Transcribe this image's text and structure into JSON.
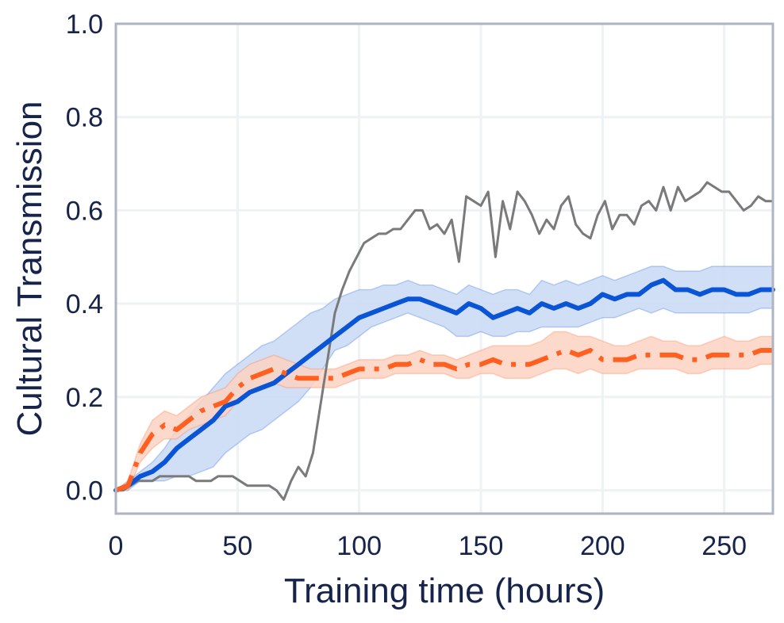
{
  "chart_data": {
    "type": "line",
    "title": "",
    "xlabel": "Training time (hours)",
    "ylabel": "Cultural Transmission",
    "xlim": [
      0,
      270
    ],
    "ylim": [
      -0.05,
      1.0
    ],
    "x_ticks": [
      0,
      50,
      100,
      150,
      200,
      250
    ],
    "y_ticks": [
      0.0,
      0.2,
      0.4,
      0.6,
      0.8,
      1.0
    ],
    "grid": true,
    "legend": "none",
    "series": [
      {
        "style": "solid",
        "color": "#0a55d6",
        "band_color": "#c9d9f5",
        "x": [
          0,
          5,
          10,
          15,
          20,
          25,
          30,
          35,
          40,
          45,
          50,
          55,
          60,
          65,
          70,
          75,
          80,
          85,
          90,
          95,
          100,
          105,
          110,
          115,
          120,
          125,
          130,
          135,
          140,
          145,
          150,
          155,
          160,
          165,
          170,
          175,
          180,
          185,
          190,
          195,
          200,
          205,
          210,
          215,
          220,
          225,
          230,
          235,
          240,
          245,
          250,
          255,
          260,
          265,
          270
        ],
        "y": [
          0.0,
          0.01,
          0.03,
          0.04,
          0.06,
          0.09,
          0.11,
          0.13,
          0.15,
          0.18,
          0.19,
          0.21,
          0.22,
          0.23,
          0.25,
          0.27,
          0.29,
          0.31,
          0.33,
          0.35,
          0.37,
          0.38,
          0.39,
          0.4,
          0.41,
          0.41,
          0.4,
          0.39,
          0.38,
          0.4,
          0.39,
          0.37,
          0.38,
          0.39,
          0.38,
          0.4,
          0.39,
          0.4,
          0.39,
          0.4,
          0.42,
          0.41,
          0.42,
          0.42,
          0.44,
          0.45,
          0.43,
          0.43,
          0.42,
          0.43,
          0.43,
          0.42,
          0.42,
          0.43,
          0.43
        ],
        "lower": [
          0.0,
          0.0,
          0.02,
          0.02,
          0.02,
          0.03,
          0.03,
          0.04,
          0.05,
          0.08,
          0.1,
          0.12,
          0.13,
          0.15,
          0.17,
          0.19,
          0.22,
          0.26,
          0.3,
          0.31,
          0.33,
          0.35,
          0.36,
          0.37,
          0.38,
          0.37,
          0.36,
          0.35,
          0.33,
          0.33,
          0.34,
          0.33,
          0.33,
          0.34,
          0.34,
          0.35,
          0.35,
          0.35,
          0.35,
          0.36,
          0.37,
          0.37,
          0.38,
          0.39,
          0.38,
          0.39,
          0.38,
          0.38,
          0.38,
          0.38,
          0.38,
          0.38,
          0.38,
          0.39,
          0.39
        ],
        "upper": [
          0.0,
          0.02,
          0.04,
          0.06,
          0.09,
          0.13,
          0.16,
          0.19,
          0.22,
          0.25,
          0.27,
          0.29,
          0.31,
          0.32,
          0.34,
          0.36,
          0.38,
          0.39,
          0.41,
          0.42,
          0.43,
          0.43,
          0.44,
          0.44,
          0.45,
          0.44,
          0.44,
          0.43,
          0.42,
          0.44,
          0.43,
          0.42,
          0.43,
          0.43,
          0.42,
          0.45,
          0.44,
          0.45,
          0.44,
          0.45,
          0.46,
          0.45,
          0.46,
          0.47,
          0.48,
          0.48,
          0.47,
          0.47,
          0.47,
          0.48,
          0.48,
          0.48,
          0.48,
          0.48,
          0.48
        ]
      },
      {
        "style": "dashdot",
        "color": "#ff5f1f",
        "band_color": "#fbd2c2",
        "x": [
          0,
          5,
          10,
          15,
          20,
          25,
          30,
          35,
          40,
          45,
          50,
          55,
          60,
          65,
          70,
          75,
          80,
          85,
          90,
          95,
          100,
          105,
          110,
          115,
          120,
          125,
          130,
          135,
          140,
          145,
          150,
          155,
          160,
          165,
          170,
          175,
          180,
          185,
          190,
          195,
          200,
          205,
          210,
          215,
          220,
          225,
          230,
          235,
          240,
          245,
          250,
          255,
          260,
          265,
          270
        ],
        "y": [
          0.0,
          0.01,
          0.08,
          0.12,
          0.14,
          0.13,
          0.15,
          0.17,
          0.18,
          0.19,
          0.22,
          0.24,
          0.25,
          0.26,
          0.25,
          0.24,
          0.24,
          0.24,
          0.24,
          0.25,
          0.26,
          0.26,
          0.26,
          0.27,
          0.27,
          0.28,
          0.27,
          0.27,
          0.26,
          0.27,
          0.27,
          0.28,
          0.27,
          0.27,
          0.27,
          0.28,
          0.29,
          0.3,
          0.29,
          0.3,
          0.28,
          0.28,
          0.28,
          0.29,
          0.29,
          0.29,
          0.29,
          0.28,
          0.28,
          0.29,
          0.29,
          0.29,
          0.29,
          0.3,
          0.3
        ],
        "lower": [
          0.0,
          0.0,
          0.06,
          0.09,
          0.11,
          0.11,
          0.13,
          0.14,
          0.15,
          0.16,
          0.19,
          0.21,
          0.22,
          0.23,
          0.22,
          0.22,
          0.22,
          0.22,
          0.22,
          0.23,
          0.24,
          0.24,
          0.24,
          0.25,
          0.25,
          0.25,
          0.25,
          0.25,
          0.24,
          0.24,
          0.25,
          0.25,
          0.24,
          0.24,
          0.24,
          0.25,
          0.26,
          0.26,
          0.25,
          0.26,
          0.25,
          0.25,
          0.25,
          0.26,
          0.26,
          0.26,
          0.26,
          0.25,
          0.25,
          0.26,
          0.26,
          0.26,
          0.26,
          0.27,
          0.27
        ],
        "upper": [
          0.0,
          0.02,
          0.1,
          0.15,
          0.17,
          0.16,
          0.18,
          0.2,
          0.21,
          0.22,
          0.25,
          0.27,
          0.28,
          0.29,
          0.28,
          0.27,
          0.26,
          0.26,
          0.26,
          0.27,
          0.28,
          0.28,
          0.28,
          0.29,
          0.29,
          0.3,
          0.29,
          0.29,
          0.28,
          0.29,
          0.3,
          0.31,
          0.31,
          0.31,
          0.31,
          0.32,
          0.34,
          0.34,
          0.33,
          0.33,
          0.32,
          0.31,
          0.31,
          0.32,
          0.33,
          0.32,
          0.32,
          0.31,
          0.31,
          0.32,
          0.33,
          0.32,
          0.32,
          0.33,
          0.33
        ]
      },
      {
        "style": "thin",
        "color": "#7a7a7a",
        "x": [
          0,
          3,
          6,
          9,
          12,
          15,
          18,
          21,
          24,
          27,
          30,
          33,
          36,
          39,
          42,
          45,
          48,
          51,
          54,
          57,
          60,
          63,
          66,
          69,
          72,
          75,
          78,
          81,
          84,
          87,
          90,
          93,
          96,
          99,
          102,
          105,
          108,
          111,
          114,
          117,
          120,
          123,
          126,
          129,
          132,
          135,
          138,
          141,
          144,
          147,
          150,
          153,
          156,
          159,
          162,
          165,
          168,
          171,
          174,
          177,
          180,
          183,
          186,
          189,
          192,
          195,
          198,
          201,
          204,
          207,
          210,
          213,
          216,
          219,
          222,
          225,
          228,
          231,
          234,
          237,
          240,
          243,
          246,
          249,
          252,
          255,
          258,
          261,
          264,
          267,
          270
        ],
        "y": [
          0.0,
          0.0,
          0.01,
          0.02,
          0.02,
          0.02,
          0.03,
          0.03,
          0.03,
          0.03,
          0.03,
          0.02,
          0.02,
          0.02,
          0.03,
          0.03,
          0.03,
          0.02,
          0.01,
          0.01,
          0.01,
          0.01,
          0.0,
          -0.02,
          0.02,
          0.05,
          0.03,
          0.08,
          0.18,
          0.28,
          0.38,
          0.43,
          0.47,
          0.5,
          0.53,
          0.54,
          0.55,
          0.55,
          0.56,
          0.56,
          0.58,
          0.6,
          0.6,
          0.56,
          0.57,
          0.55,
          0.58,
          0.49,
          0.63,
          0.62,
          0.61,
          0.64,
          0.5,
          0.62,
          0.56,
          0.64,
          0.62,
          0.59,
          0.55,
          0.58,
          0.56,
          0.61,
          0.63,
          0.57,
          0.55,
          0.54,
          0.59,
          0.62,
          0.56,
          0.59,
          0.59,
          0.57,
          0.61,
          0.62,
          0.6,
          0.65,
          0.6,
          0.65,
          0.62,
          0.63,
          0.64,
          0.66,
          0.65,
          0.64,
          0.64,
          0.62,
          0.6,
          0.61,
          0.63,
          0.62,
          0.62
        ]
      }
    ]
  }
}
